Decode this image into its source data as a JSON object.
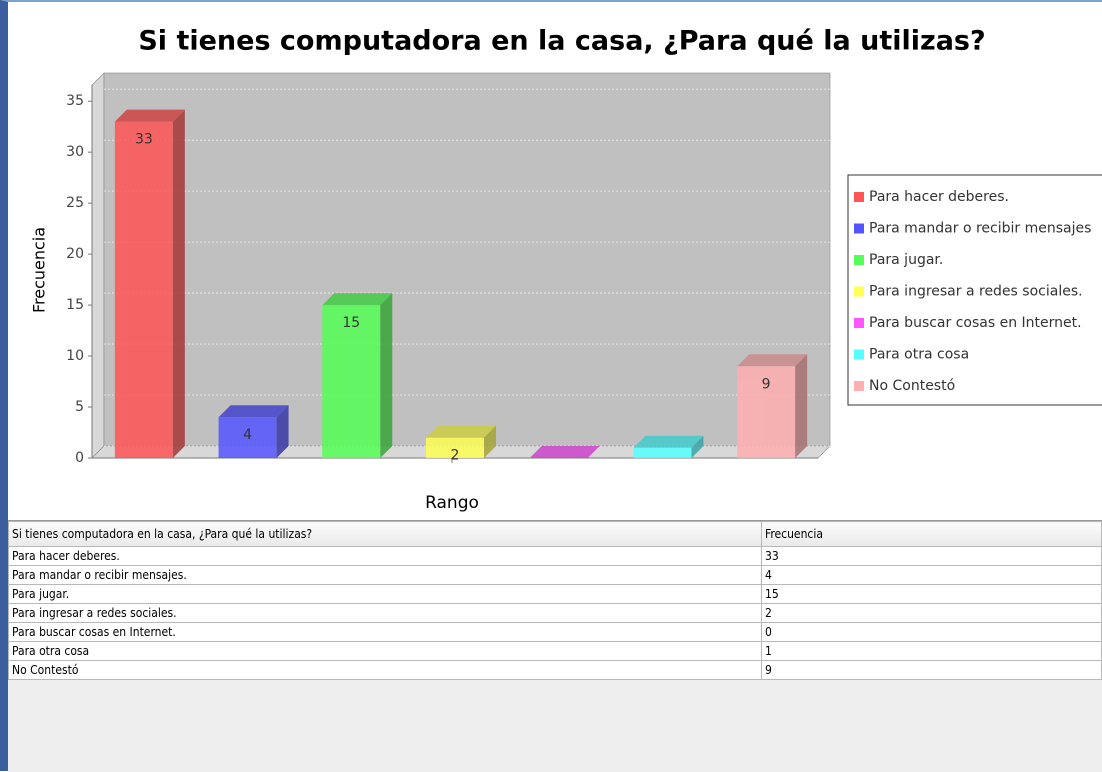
{
  "chart_data": {
    "type": "bar3d",
    "title": "Si tienes computadora en la casa, ¿Para qué la utilizas?",
    "x_label": "Rango",
    "y_label": "Frecuencia",
    "series": [
      {
        "name": "Para hacer deberes.",
        "color": "#ff5555",
        "values": [
          33
        ]
      },
      {
        "name": "Para mandar o recibir mensajes",
        "color": "#5555ff",
        "values": [
          4
        ]
      },
      {
        "name": "Para jugar.",
        "color": "#55ff55",
        "values": [
          15
        ]
      },
      {
        "name": "Para ingresar a redes sociales.",
        "color": "#ffff55",
        "values": [
          2
        ]
      },
      {
        "name": "Para buscar cosas en Internet.",
        "color": "#ff55ff",
        "values": [
          0
        ]
      },
      {
        "name": "Para otra cosa",
        "color": "#55ffff",
        "values": [
          1
        ]
      },
      {
        "name": "No Contestó",
        "color": "#ffafaf",
        "values": [
          9
        ]
      }
    ],
    "ylim": [
      0,
      36
    ],
    "yticks": [
      0,
      5,
      10,
      15,
      20,
      25,
      30,
      35
    ],
    "grid": true,
    "legend": "right"
  },
  "table": {
    "header": [
      "Si tienes computadora en la casa, ¿Para qué la utilizas?",
      "Frecuencia"
    ],
    "rows": [
      [
        "Para hacer deberes.",
        "33"
      ],
      [
        "Para mandar o recibir mensajes.",
        "4"
      ],
      [
        "Para jugar.",
        "15"
      ],
      [
        "Para ingresar a redes sociales.",
        "2"
      ],
      [
        "Para buscar cosas en Internet.",
        "0"
      ],
      [
        "Para otra cosa",
        "1"
      ],
      [
        "No Contestó",
        "9"
      ]
    ]
  }
}
